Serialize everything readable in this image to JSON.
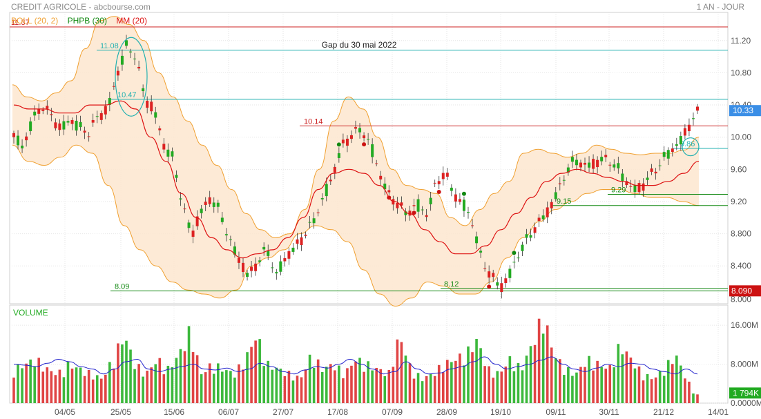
{
  "header": {
    "title": "CREDIT AGRICOLE - abcbourse.com",
    "period": "1 AN - JOUR"
  },
  "legend": {
    "boll": {
      "label": "BOLL (20, 2)",
      "color": "#f0a030"
    },
    "phpb": {
      "label": "PHPB (30)",
      "color": "#118811"
    },
    "mm": {
      "label": "MM (20)",
      "color": "#dd1111"
    }
  },
  "chart_data": [
    {
      "type": "candlestick",
      "title": "CREDIT AGRICOLE",
      "y_ticks": [
        "11.20",
        "10.80",
        "10.40",
        "10.00",
        "9.60",
        "9.20",
        "8.800",
        "8.400"
      ],
      "ylim": [
        7.93,
        11.55
      ],
      "x_ticks": [
        "04/05",
        "25/05",
        "15/06",
        "06/07",
        "27/07",
        "17/08",
        "07/09",
        "28/09",
        "19/10",
        "09/11",
        "30/11",
        "21/12",
        "14/01"
      ],
      "last_price": "10.33",
      "low_marker": "8.090",
      "annotations": [
        "Gap du 30 mai 2022"
      ],
      "levels": [
        {
          "label": "11.37",
          "value": 11.37,
          "color": "#cc2222"
        },
        {
          "label": "11.08",
          "value": 11.08,
          "color": "#20b0b0"
        },
        {
          "label": "10.47",
          "value": 10.47,
          "color": "#20b0b0"
        },
        {
          "label": "10.14",
          "value": 10.14,
          "color": "#cc2222"
        },
        {
          "label": "9.29",
          "value": 9.29,
          "color": "#118811"
        },
        {
          "label": "9.15",
          "value": 9.15,
          "color": "#118811"
        },
        {
          "label": "8.09",
          "value": 8.09,
          "color": "#118811"
        },
        {
          "label": "8.12",
          "value": 8.12,
          "color": "#118811"
        },
        {
          "label": "9.86",
          "value": 9.86,
          "color": "#20b0b0"
        }
      ],
      "close_path": [
        10.0,
        9.85,
        10.2,
        10.4,
        10.3,
        10.1,
        10.2,
        10.1,
        10.05,
        10.3,
        10.35,
        10.75,
        11.1,
        11.0,
        10.5,
        10.35,
        9.9,
        9.7,
        9.15,
        8.8,
        9.1,
        9.25,
        9.05,
        8.7,
        8.5,
        8.3,
        8.45,
        8.6,
        8.25,
        8.5,
        8.65,
        8.8,
        8.95,
        9.2,
        9.5,
        9.9,
        10.05,
        10.1,
        9.9,
        9.55,
        9.3,
        9.2,
        9.05,
        9.15,
        9.0,
        9.4,
        9.6,
        9.3,
        9.15,
        8.9,
        8.45,
        8.3,
        8.15,
        8.3,
        8.55,
        8.75,
        8.95,
        9.1,
        9.3,
        9.55,
        9.7,
        9.65,
        9.7,
        9.75,
        9.65,
        9.5,
        9.35,
        9.4,
        9.55,
        9.65,
        9.8,
        9.9,
        10.15,
        10.33
      ],
      "boll_upper": [
        10.65,
        10.5,
        10.45,
        10.55,
        10.7,
        11.1,
        11.45,
        11.5,
        11.4,
        11.2,
        10.8,
        10.5,
        10.2,
        9.9,
        9.65,
        9.35,
        9.05,
        8.85,
        8.75,
        8.8,
        9.1,
        9.6,
        10.2,
        10.5,
        10.35,
        10.0,
        9.6,
        9.4,
        9.35,
        9.3,
        9.0,
        8.9,
        9.1,
        9.3,
        9.45,
        9.8,
        9.85,
        9.8,
        9.75,
        9.8,
        9.9,
        9.85,
        9.8,
        9.78,
        9.8,
        9.8,
        9.84,
        10.0
      ],
      "boll_lower": [
        9.9,
        9.7,
        9.65,
        9.75,
        9.9,
        9.8,
        9.4,
        8.9,
        8.6,
        8.4,
        8.2,
        8.1,
        8.05,
        8.0,
        8.1,
        8.4,
        8.5,
        8.6,
        8.8,
        8.9,
        8.85,
        8.7,
        8.35,
        8.05,
        7.9,
        8.0,
        8.2,
        8.15,
        8.05,
        8.05,
        8.2,
        8.5,
        8.75,
        8.95,
        9.1,
        9.2,
        9.3,
        9.35,
        9.35,
        9.3,
        9.25,
        9.25,
        9.2,
        9.15
      ],
      "mm20": [
        10.4,
        10.35,
        10.35,
        10.3,
        10.3,
        10.4,
        10.4,
        10.45,
        10.35,
        10.0,
        9.7,
        9.3,
        9.0,
        8.75,
        8.6,
        8.5,
        8.55,
        8.6,
        8.75,
        9.0,
        9.35,
        9.55,
        9.6,
        9.55,
        9.4,
        9.2,
        9.05,
        8.85,
        8.7,
        8.55,
        8.55,
        8.65,
        8.85,
        9.05,
        9.25,
        9.45,
        9.55,
        9.6,
        9.55,
        9.5,
        9.45,
        9.4,
        9.4,
        9.45,
        9.55,
        9.7
      ]
    },
    {
      "type": "bar",
      "title": "VOLUME",
      "y_ticks": [
        "16.00M",
        "8.000M",
        "0.0000M"
      ],
      "ylim": [
        0,
        19
      ],
      "last_value": "1 794K",
      "volume_profile": [
        7,
        8,
        9,
        7,
        6,
        8,
        7,
        6,
        5,
        9,
        14,
        8,
        6,
        9,
        7,
        10,
        15,
        6,
        8,
        7,
        6,
        9,
        14,
        8,
        7,
        6,
        5,
        10,
        7,
        8,
        6,
        9,
        8,
        7,
        6,
        14,
        7,
        5,
        6,
        8,
        9,
        10,
        13,
        7,
        6,
        9,
        7,
        12,
        18,
        10,
        7,
        6,
        9,
        8,
        7,
        12,
        9,
        6,
        5,
        7,
        10,
        5,
        1
      ],
      "avg_profile": [
        8,
        7.8,
        7.5,
        8.2,
        9,
        8.5,
        7.5,
        7,
        6,
        7,
        8.5,
        9,
        7,
        6.5,
        7,
        7.5,
        8,
        7,
        6.8,
        7.2,
        6.5,
        7,
        8.2,
        7.5,
        6.5,
        6,
        6.8,
        7.5,
        7.2,
        8,
        9,
        8,
        7,
        6,
        6.5,
        8.5,
        7,
        6,
        6.2,
        7,
        7.5,
        8.5,
        9.5,
        8,
        7,
        7.5,
        8,
        8.8,
        9.5,
        8,
        7,
        6.5,
        7.2,
        8,
        7.5,
        8.2,
        8,
        7,
        6.5,
        6,
        7,
        6
      ]
    }
  ]
}
